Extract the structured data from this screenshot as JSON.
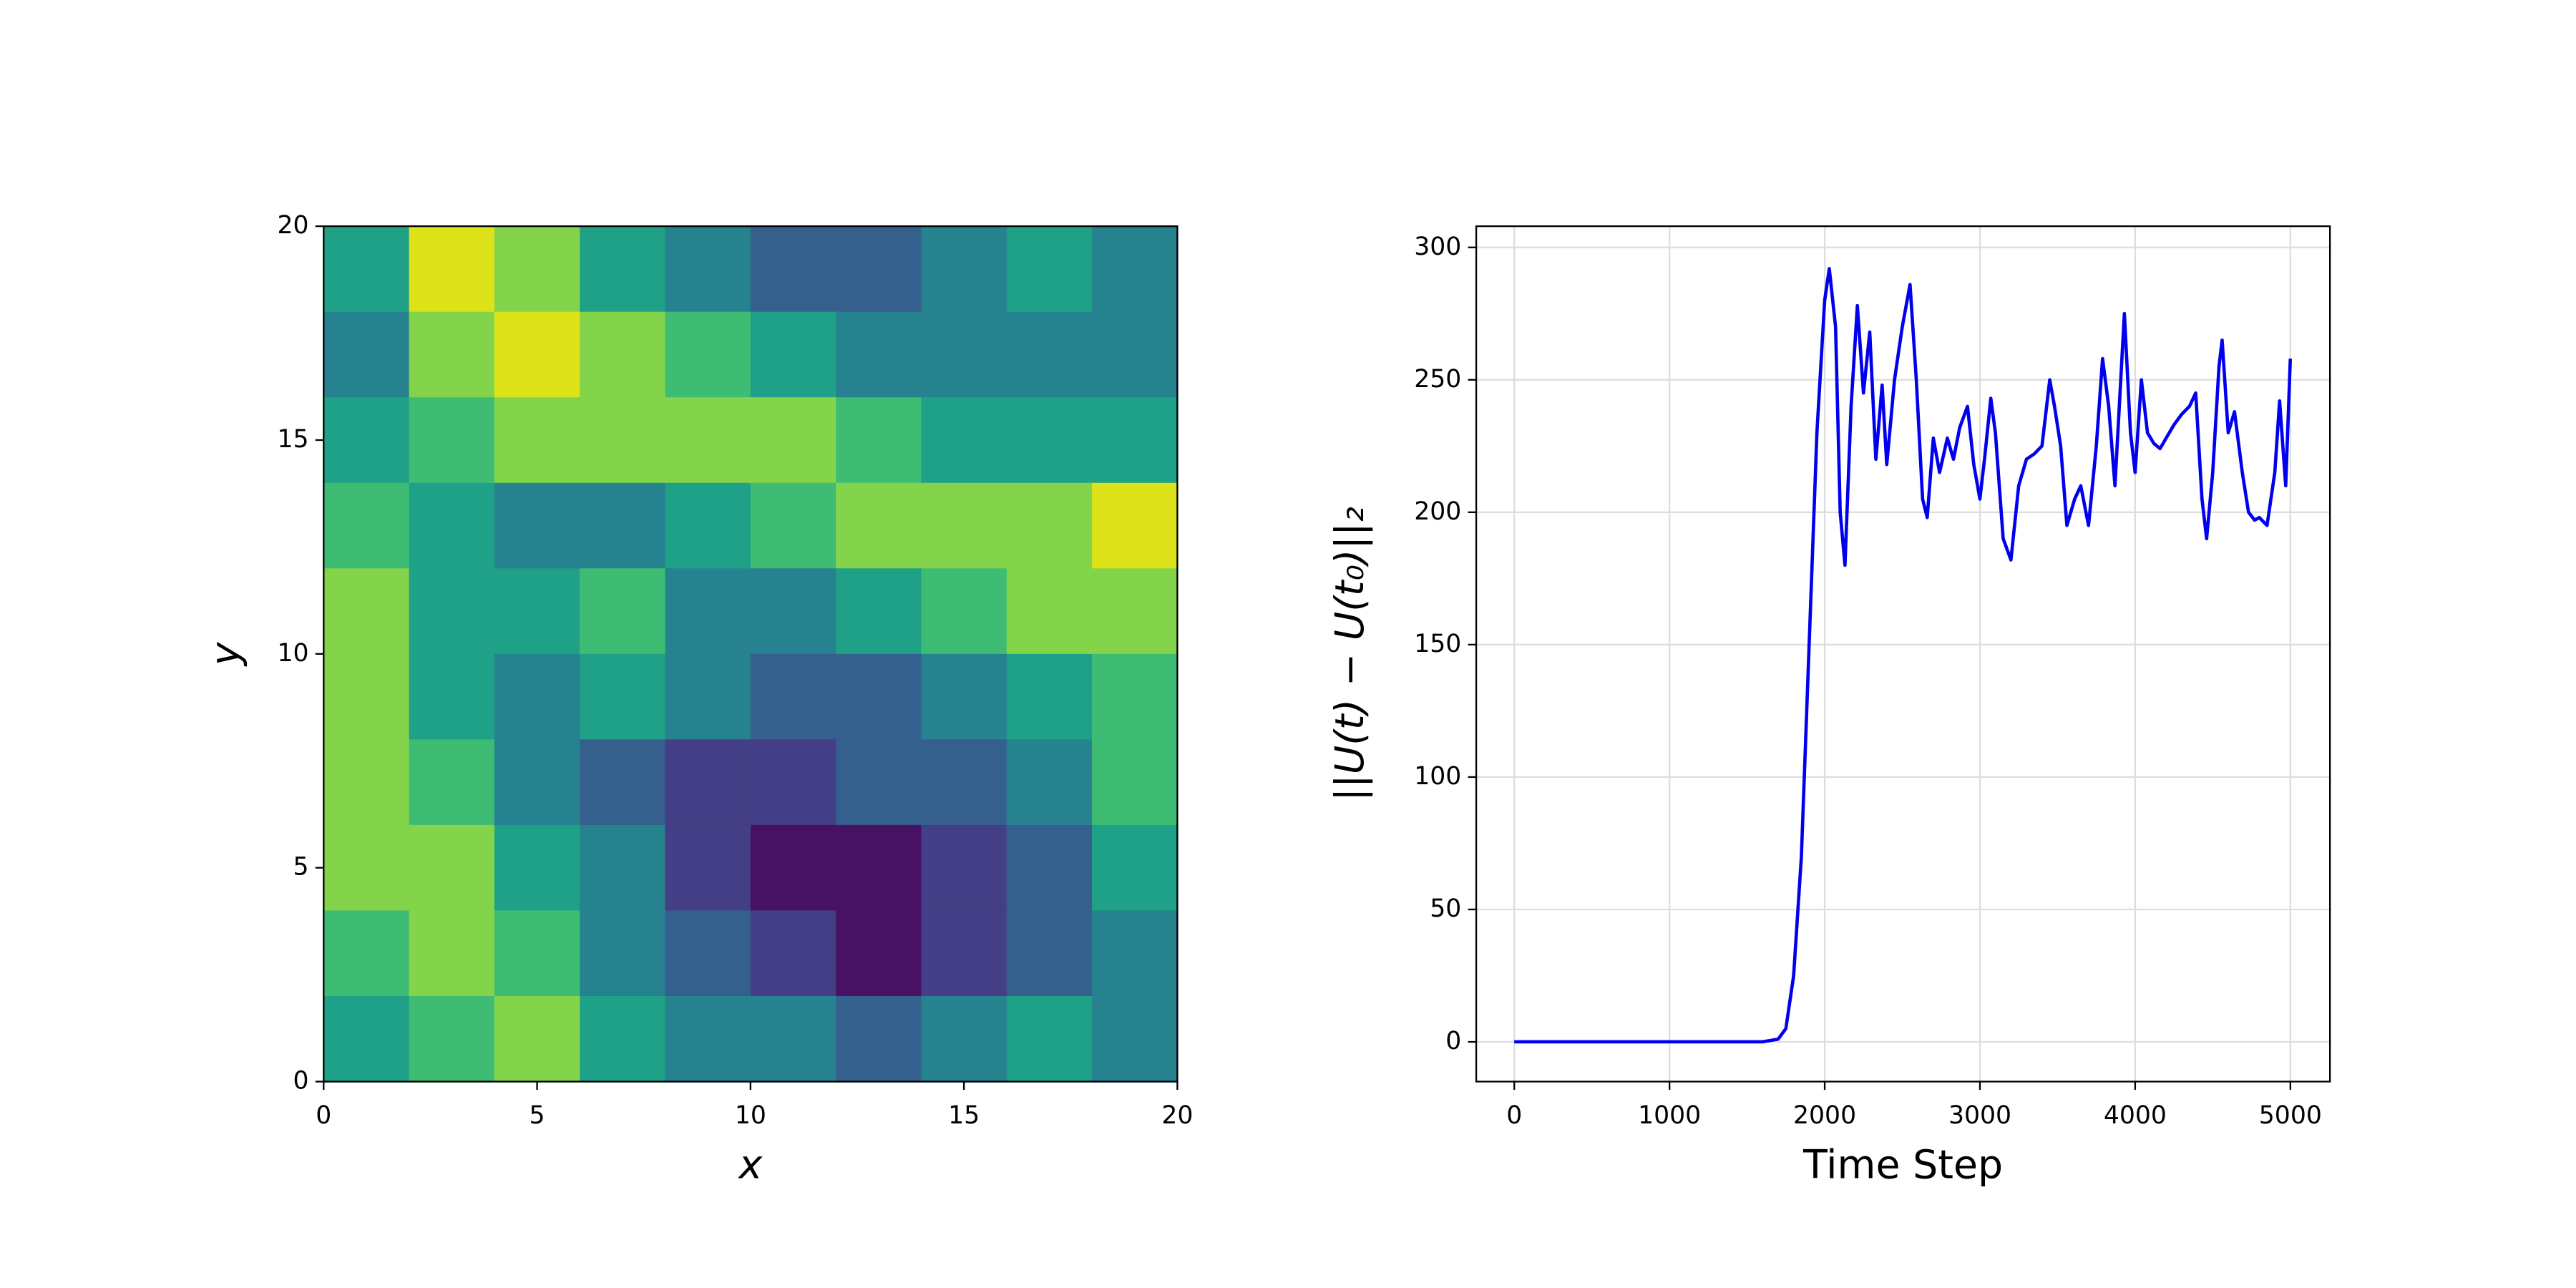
{
  "chart_data": [
    {
      "type": "contour",
      "xlabel": "x",
      "ylabel": "y",
      "xlim": [
        0,
        20
      ],
      "ylim": [
        0,
        20
      ],
      "xticks": [
        0,
        5,
        10,
        15,
        20
      ],
      "yticks": [
        0,
        5,
        10,
        15,
        20
      ],
      "grid": false,
      "colors": [
        "#471164",
        "#433e85",
        "#35608d",
        "#26828e",
        "#1fa187",
        "#3fbc73",
        "#84d44b",
        "#dde318"
      ],
      "z": [
        [
          4,
          7,
          6,
          4,
          3,
          2,
          2,
          3,
          4,
          3
        ],
        [
          3,
          6,
          7,
          6,
          5,
          4,
          3,
          3,
          3,
          3
        ],
        [
          4,
          5,
          6,
          6,
          6,
          6,
          5,
          4,
          4,
          4
        ],
        [
          5,
          4,
          3,
          3,
          4,
          5,
          6,
          6,
          6,
          7
        ],
        [
          6,
          4,
          4,
          5,
          3,
          3,
          4,
          5,
          6,
          6
        ],
        [
          6,
          4,
          3,
          4,
          3,
          2,
          2,
          3,
          4,
          5
        ],
        [
          6,
          5,
          3,
          2,
          1,
          1,
          2,
          2,
          3,
          5
        ],
        [
          6,
          6,
          4,
          3,
          1,
          0,
          0,
          1,
          2,
          4
        ],
        [
          5,
          6,
          5,
          3,
          2,
          1,
          0,
          1,
          2,
          3
        ],
        [
          4,
          5,
          6,
          4,
          3,
          3,
          2,
          3,
          4,
          3
        ]
      ]
    },
    {
      "type": "line",
      "xlabel": "Time Step",
      "ylabel": "||U(t) − U(t₀)||₂",
      "xlim": [
        -245,
        5255
      ],
      "ylim": [
        -15,
        308
      ],
      "xticks": [
        0,
        1000,
        2000,
        3000,
        4000,
        5000
      ],
      "yticks": [
        0,
        50,
        100,
        150,
        200,
        250,
        300
      ],
      "grid": true,
      "series": [
        {
          "color": "#0000ee",
          "x": [
            0,
            1600,
            1700,
            1750,
            1800,
            1850,
            1900,
            1950,
            2000,
            2030,
            2070,
            2100,
            2130,
            2170,
            2210,
            2250,
            2290,
            2330,
            2370,
            2400,
            2450,
            2500,
            2550,
            2590,
            2630,
            2660,
            2700,
            2740,
            2790,
            2830,
            2870,
            2920,
            2960,
            3000,
            3030,
            3070,
            3100,
            3150,
            3200,
            3250,
            3300,
            3350,
            3400,
            3450,
            3480,
            3520,
            3560,
            3610,
            3650,
            3700,
            3750,
            3790,
            3830,
            3870,
            3930,
            3970,
            4000,
            4040,
            4080,
            4120,
            4160,
            4200,
            4250,
            4300,
            4350,
            4390,
            4430,
            4460,
            4500,
            4540,
            4560,
            4600,
            4640,
            4690,
            4730,
            4770,
            4800,
            4850,
            4900,
            4930,
            4970,
            5000
          ],
          "values": [
            0,
            0,
            1,
            5,
            25,
            70,
            150,
            230,
            280,
            292,
            270,
            200,
            180,
            240,
            278,
            245,
            268,
            220,
            248,
            218,
            250,
            270,
            286,
            250,
            205,
            198,
            228,
            215,
            228,
            220,
            232,
            240,
            218,
            205,
            220,
            243,
            230,
            190,
            182,
            210,
            220,
            222,
            225,
            250,
            240,
            225,
            195,
            205,
            210,
            195,
            225,
            258,
            240,
            210,
            275,
            230,
            215,
            250,
            230,
            226,
            224,
            228,
            233,
            237,
            240,
            245,
            205,
            190,
            215,
            255,
            265,
            230,
            238,
            215,
            200,
            197,
            198,
            195,
            215,
            242,
            210,
            258
          ]
        }
      ]
    }
  ]
}
